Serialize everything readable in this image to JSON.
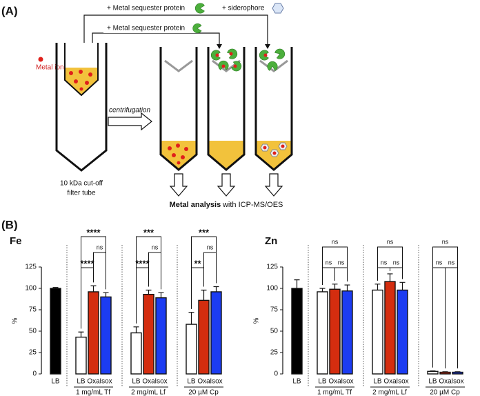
{
  "panel_a": {
    "label": "(A)",
    "top_labels": [
      "+ Metal sequester protein",
      "+ siderophore"
    ],
    "middle_label": "+ Metal sequester protein",
    "metal_ion": "Metal ion",
    "centrifugation": "centrifugation",
    "filter_tube": [
      "10 kDa cut-off",
      "filter tube"
    ],
    "analysis_bold": "Metal analysis",
    "analysis_rest": "with ICP-MS/OES"
  },
  "panel_b_label": "(B)",
  "chart_data": [
    {
      "type": "bar",
      "title": "Fe",
      "y_label": "%",
      "ylim": [
        0,
        125
      ],
      "yticks": [
        0,
        25,
        50,
        75,
        100,
        125
      ],
      "categories": [
        "LB",
        "LB",
        "Oxa",
        "Isox",
        "LB",
        "Oxa",
        "Isox",
        "LB",
        "Oxa",
        "Isox"
      ],
      "values": [
        100,
        43,
        96,
        90,
        48,
        93,
        89,
        58,
        86,
        96
      ],
      "errors": [
        1,
        6,
        7,
        5,
        7,
        5,
        6,
        14,
        12,
        6
      ],
      "colors": [
        "#000000",
        "#ffffff",
        "#d42d0f",
        "#1c3cf2",
        "#ffffff",
        "#d42d0f",
        "#1c3cf2",
        "#ffffff",
        "#d42d0f",
        "#1c3cf2"
      ],
      "groups": [
        {
          "label": "1 mg/mL Tf",
          "significance": [
            "****",
            "ns",
            "****"
          ]
        },
        {
          "label": "2 mg/mL Lf",
          "significance": [
            "****",
            "ns",
            "***"
          ]
        },
        {
          "label": "20 µM Cp",
          "significance": [
            "**",
            "ns",
            "***"
          ]
        }
      ]
    },
    {
      "type": "bar",
      "title": "Zn",
      "y_label": "%",
      "ylim": [
        0,
        125
      ],
      "yticks": [
        0,
        25,
        50,
        75,
        100,
        125
      ],
      "categories": [
        "LB",
        "LB",
        "Oxa",
        "Isox",
        "LB",
        "Oxa",
        "Isox",
        "LB",
        "Oxa",
        "Isox"
      ],
      "values": [
        100,
        96,
        99,
        97,
        98,
        108,
        98,
        3,
        2,
        2
      ],
      "errors": [
        10,
        4,
        6,
        7,
        7,
        9,
        9,
        0.5,
        0.5,
        0.5
      ],
      "colors": [
        "#000000",
        "#ffffff",
        "#d42d0f",
        "#1c3cf2",
        "#ffffff",
        "#d42d0f",
        "#1c3cf2",
        "#ffffff",
        "#d42d0f",
        "#1c3cf2"
      ],
      "groups": [
        {
          "label": "1 mg/mL Tf",
          "significance": [
            "ns",
            "ns",
            "ns"
          ]
        },
        {
          "label": "2 mg/mL Lf",
          "significance": [
            "ns",
            "ns",
            "ns"
          ]
        },
        {
          "label": "20 µM Cp",
          "significance": [
            "ns",
            "ns",
            "ns"
          ]
        }
      ]
    }
  ]
}
